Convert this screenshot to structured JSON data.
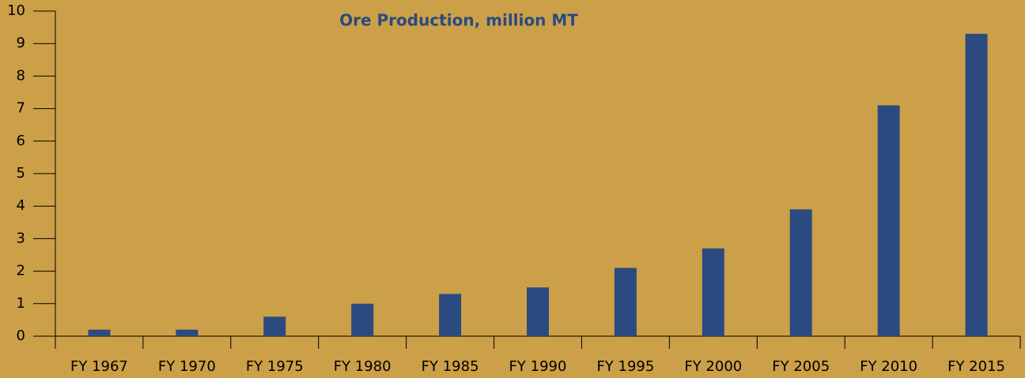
{
  "chart_data": {
    "type": "bar",
    "title": "Ore Production, million MT",
    "categories": [
      "FY 1967",
      "FY 1970",
      "FY 1975",
      "FY 1980",
      "FY 1985",
      "FY 1990",
      "FY 1995",
      "FY 2000",
      "FY 2005",
      "FY 2010",
      "FY 2015"
    ],
    "values": [
      0.2,
      0.2,
      0.6,
      1.0,
      1.3,
      1.5,
      2.1,
      2.7,
      3.9,
      7.1,
      9.3
    ],
    "color": "#2b4a80",
    "ylim": [
      0,
      10
    ],
    "yticks": [
      0,
      1,
      2,
      3,
      4,
      5,
      6,
      7,
      8,
      9,
      10
    ],
    "grid": false
  }
}
